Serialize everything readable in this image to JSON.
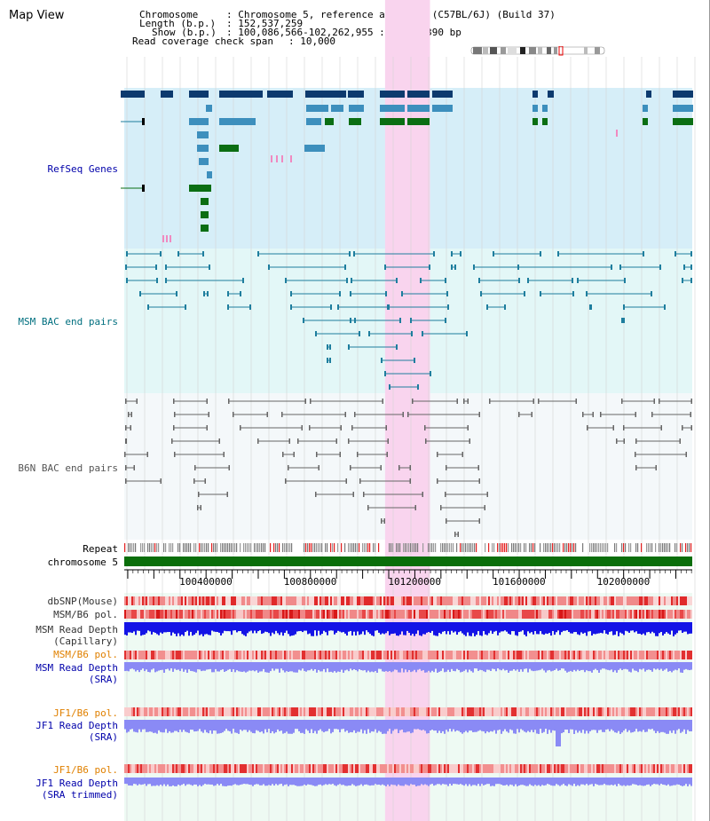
{
  "header": {
    "title": "Map View",
    "chromosome_label": "Chromosome",
    "chromosome_value": ": Chromosome 5, reference assembly (C57BL/6J) (Build 37)",
    "length_label": "Length (b.p.)",
    "length_value": ": 152,537,259",
    "show_label": "Show (b.p.)",
    "show_value": ": 100,086,566-102,262,955 : 2,176,390 bp",
    "coverage_label": "Read coverage check span",
    "coverage_value": ": 10,000"
  },
  "tracks": {
    "refseq": "RefSeq Genes",
    "msm_bac": "MSM BAC end pairs",
    "b6n_bac": "B6N BAC end pairs",
    "repeat": "Repeat",
    "chromosome": "chromosome 5",
    "dbsnp": "dbSNP(Mouse)",
    "msm_b6_pol": "MSM/B6 pol.",
    "msm_read_depth_cap_1": "MSM Read Depth",
    "msm_read_depth_cap_2": "(Capillary)",
    "msm_b6_pol_2": "MSM/B6 pol.",
    "msm_read_depth_sra_1": "MSM Read Depth",
    "msm_read_depth_sra_2": "(SRA)",
    "jf1_b6_pol": "JF1/B6 pol.",
    "jf1_read_depth_sra_1": "JF1 Read Depth",
    "jf1_read_depth_sra_2": "(SRA)",
    "jf1_b6_pol_2": "JF1/B6 pol.",
    "jf1_read_depth_trim_1": "JF1 Read Depth",
    "jf1_read_depth_trim_2": "(SRA trimmed)"
  },
  "axis": {
    "start_bp": 100086566,
    "end_bp": 102262955,
    "ticks": [
      {
        "bp": 100400000,
        "label": "100400000"
      },
      {
        "bp": 100800000,
        "label": "100800000"
      },
      {
        "bp": 101200000,
        "label": "101200000"
      },
      {
        "bp": 101600000,
        "label": "101600000"
      },
      {
        "bp": 102000000,
        "label": "102000000"
      }
    ]
  },
  "highlight": {
    "start_bp": 101086000,
    "end_bp": 101258000
  },
  "colors": {
    "refseq_bg": "#d6eef8",
    "bac_bg": "#e3f7f7",
    "b6n_bg": "#f4f8fa",
    "highlight": "#f9d4ee",
    "gene_dark": "#0d3a6e",
    "gene_mid": "#3d8fbd",
    "gene_green": "#0b6e13",
    "bac_line": "#1e7e9e",
    "b6n_line": "#666666",
    "chrom_bar": "#0a6e0a",
    "depth_blue": "#1414e6",
    "depth_light": "#8a8af5"
  }
}
